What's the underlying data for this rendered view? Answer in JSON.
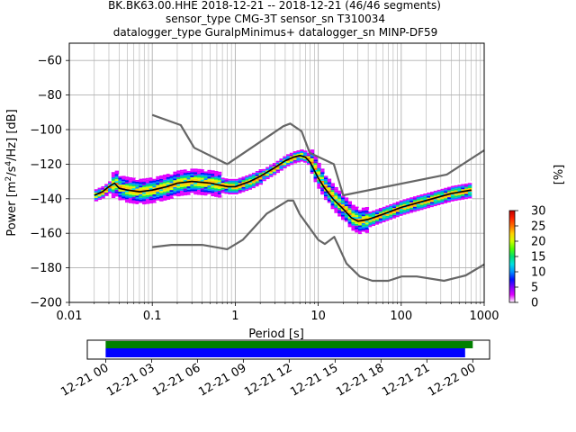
{
  "chart_data": {
    "type": "heatmap",
    "title_lines": [
      "BK.BK63.00.HHE   2018-12-21 -- 2018-12-21  (46/46 segments)",
      "sensor_type CMG-3T sensor_sn T310034",
      "datalogger_type GuralpMinimus+ datalogger_sn MINP-DF59"
    ],
    "xlabel": "Period [s]",
    "ylabel_parts": {
      "pre": "Power [m",
      "sup1": "2",
      "mid": "/s",
      "sup2": "4",
      "post": "/Hz] [dB]"
    },
    "xscale": "log",
    "xlim": [
      0.01,
      1000
    ],
    "ylim": [
      -200,
      -50
    ],
    "x_ticks": [
      {
        "value": 0.01,
        "label": "0.01"
      },
      {
        "value": 0.1,
        "label": "0.1"
      },
      {
        "value": 1,
        "label": "1"
      },
      {
        "value": 10,
        "label": "10"
      },
      {
        "value": 100,
        "label": "100"
      },
      {
        "value": 1000,
        "label": "1000"
      }
    ],
    "y_ticks": [
      {
        "value": -60,
        "label": "−60"
      },
      {
        "value": -80,
        "label": "−80"
      },
      {
        "value": -100,
        "label": "−100"
      },
      {
        "value": -120,
        "label": "−120"
      },
      {
        "value": -140,
        "label": "−140"
      },
      {
        "value": -160,
        "label": "−160"
      },
      {
        "value": -180,
        "label": "−180"
      },
      {
        "value": -200,
        "label": "−200"
      }
    ],
    "grid": true,
    "colorbar": {
      "label": "[%]",
      "min": 0,
      "max": 30,
      "ticks": [
        {
          "value": 0,
          "label": "0"
        },
        {
          "value": 5,
          "label": "5"
        },
        {
          "value": 10,
          "label": "10"
        },
        {
          "value": 15,
          "label": "15"
        },
        {
          "value": 20,
          "label": "20"
        },
        {
          "value": 25,
          "label": "25"
        },
        {
          "value": 30,
          "label": "30"
        }
      ],
      "colors": [
        "#ffffff",
        "#e000ff",
        "#8000ff",
        "#0010ff",
        "#0090ff",
        "#00e0e0",
        "#00e070",
        "#50ff00",
        "#d0ff00",
        "#ffd000",
        "#ff7000",
        "#ff2000",
        "#c00000"
      ]
    },
    "nhnm": {
      "x": [
        0.1,
        0.22,
        0.32,
        0.8,
        3.8,
        4.6,
        6.3,
        7.9,
        15.4,
        20,
        354.8,
        1000
      ],
      "y": [
        -91.5,
        -97.4,
        -110.5,
        -120,
        -98,
        -96.5,
        -101,
        -113.5,
        -120,
        -138,
        -126,
        -112
      ]
    },
    "nlnm": {
      "x": [
        0.1,
        0.17,
        0.4,
        0.8,
        1.24,
        2.4,
        4.3,
        5,
        6,
        10,
        12,
        15.6,
        21.9,
        31.6,
        45,
        70,
        101,
        154,
        328,
        600,
        1000
      ],
      "y": [
        -168,
        -166.7,
        -166.7,
        -169.2,
        -163.7,
        -148.6,
        -141.1,
        -141.1,
        -149,
        -163.8,
        -166.2,
        -162.1,
        -177.5,
        -185,
        -187.5,
        -187.5,
        -185,
        -185,
        -187.5,
        -184.4,
        -178
      ]
    },
    "mode_line": {
      "x": [
        0.02,
        0.025,
        0.03,
        0.035,
        0.04,
        0.05,
        0.07,
        0.1,
        0.15,
        0.2,
        0.3,
        0.5,
        0.8,
        1,
        1.5,
        2,
        3,
        4,
        5,
        6,
        7,
        8,
        10,
        12,
        15,
        20,
        25,
        30,
        40,
        60,
        100,
        200,
        400,
        700
      ],
      "y": [
        -138,
        -136,
        -133,
        -131,
        -134,
        -135,
        -136,
        -135,
        -133,
        -131,
        -130,
        -131,
        -133,
        -133,
        -130,
        -127,
        -122,
        -118,
        -116,
        -115,
        -116,
        -119,
        -128,
        -134,
        -140,
        -146,
        -151,
        -153,
        -152,
        -149,
        -145,
        -141,
        -137,
        -135
      ]
    },
    "histogram_percent_range": [
      0,
      30
    ]
  },
  "timeline": {
    "tick_labels": [
      "12-21 00",
      "12-21 03",
      "12-21 06",
      "12-21 09",
      "12-21 12",
      "12-21 15",
      "12-21 18",
      "12-21 21",
      "12-22 00"
    ],
    "tick_hours": [
      0,
      3,
      6,
      9,
      12,
      15,
      18,
      21,
      24
    ],
    "axis_start_hour": -1.2,
    "axis_end_hour": 25.1,
    "green_bar": {
      "start_hour": 0,
      "end_hour": 24.0,
      "color": "#008000"
    },
    "blue_bar": {
      "start_hour": 0,
      "end_hour": 23.5,
      "color": "#0000ff"
    }
  }
}
